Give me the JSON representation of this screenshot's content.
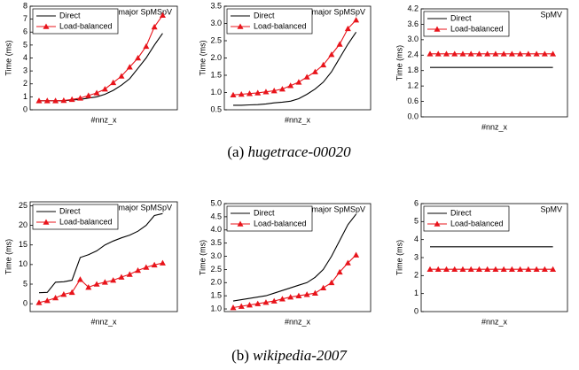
{
  "captions": [
    {
      "label": "(a)",
      "name": "hugetrace-00020"
    },
    {
      "label": "(b)",
      "name": "wikipedia-2007"
    }
  ],
  "chart_data": [
    {
      "type": "line",
      "title": "Column-major SpMSpV",
      "x_label": "#nnz_x",
      "y_label": "Time (ms)",
      "ylim": [
        0,
        8
      ],
      "yticks": [
        0,
        1,
        2,
        3,
        4,
        5,
        6,
        7,
        8
      ],
      "legend": "upper left",
      "series": [
        {
          "name": "Direct",
          "color": "#000000",
          "values": [
            0.7,
            0.7,
            0.7,
            0.7,
            0.75,
            0.8,
            0.9,
            1.0,
            1.2,
            1.5,
            1.9,
            2.4,
            3.2,
            4.0,
            5.0,
            5.9
          ]
        },
        {
          "name": "Load-balanced",
          "color": "#e8141b",
          "marker": "triangle",
          "values": [
            0.7,
            0.7,
            0.7,
            0.72,
            0.8,
            0.9,
            1.1,
            1.3,
            1.6,
            2.1,
            2.6,
            3.3,
            4.0,
            4.9,
            6.4,
            7.3
          ]
        }
      ]
    },
    {
      "type": "line",
      "title": "Row-major SpMSpV",
      "x_label": "#nnz_x",
      "y_label": "Time (ms)",
      "ylim": [
        0.5,
        3.5
      ],
      "yticks": [
        0.5,
        {
          "value": 1,
          "label": "1.0"
        },
        1.5,
        {
          "value": 2,
          "label": "2.0"
        },
        2.5,
        {
          "value": 3,
          "label": "3.0"
        },
        3.5
      ],
      "legend": "upper left",
      "series": [
        {
          "name": "Direct",
          "color": "#000000",
          "values": [
            0.63,
            0.63,
            0.64,
            0.65,
            0.67,
            0.7,
            0.72,
            0.75,
            0.82,
            0.95,
            1.1,
            1.3,
            1.6,
            2.0,
            2.4,
            2.75
          ]
        },
        {
          "name": "Load-balanced",
          "color": "#e8141b",
          "marker": "triangle",
          "values": [
            0.93,
            0.95,
            0.97,
            0.99,
            1.02,
            1.05,
            1.1,
            1.2,
            1.3,
            1.45,
            1.6,
            1.8,
            2.1,
            2.4,
            2.85,
            3.1
          ]
        }
      ]
    },
    {
      "type": "line",
      "title": "SpMV",
      "x_label": "#nnz_x",
      "y_label": "Time (ms)",
      "ylim": [
        0,
        4.2
      ],
      "yticks": [
        {
          "value": 0,
          "label": "0.0"
        },
        0.6,
        1.2,
        1.8,
        2.4,
        {
          "value": 3,
          "label": "3.0"
        },
        3.6,
        4.2
      ],
      "legend": "upper left",
      "series": [
        {
          "name": "Direct",
          "color": "#000000",
          "values": [
            1.92,
            1.92,
            1.92,
            1.92,
            1.92,
            1.92,
            1.92,
            1.92,
            1.92,
            1.92,
            1.92,
            1.92,
            1.92,
            1.92,
            1.92,
            1.92
          ]
        },
        {
          "name": "Load-balanced",
          "color": "#e8141b",
          "marker": "triangle",
          "values": [
            2.45,
            2.45,
            2.45,
            2.45,
            2.45,
            2.45,
            2.45,
            2.45,
            2.45,
            2.45,
            2.45,
            2.45,
            2.45,
            2.45,
            2.45,
            2.45
          ]
        }
      ]
    },
    {
      "type": "line",
      "title": "Column-major SpMSpV",
      "x_label": "#nnz_x",
      "y_label": "Time (ms)",
      "ylim": [
        -2,
        26
      ],
      "yticks": [
        0,
        5,
        10,
        15,
        20,
        25
      ],
      "legend": "upper left",
      "series": [
        {
          "name": "Direct",
          "color": "#000000",
          "values": [
            2.8,
            2.9,
            5.5,
            5.6,
            6.0,
            11.8,
            12.5,
            13.5,
            15.0,
            16.0,
            16.8,
            17.5,
            18.5,
            20.0,
            22.5,
            23.0
          ]
        },
        {
          "name": "Load-balanced",
          "color": "#e8141b",
          "marker": "triangle",
          "values": [
            0.3,
            0.8,
            1.5,
            2.4,
            2.9,
            6.2,
            4.2,
            5.0,
            5.5,
            6.0,
            6.8,
            7.5,
            8.5,
            9.3,
            9.9,
            10.4
          ]
        }
      ]
    },
    {
      "type": "line",
      "title": "Row-major SpMSpV",
      "x_label": "#nnz_x",
      "y_label": "Time (ms)",
      "ylim": [
        0.9,
        5.0
      ],
      "yticks": [
        {
          "value": 1,
          "label": "1.0"
        },
        1.5,
        {
          "value": 2,
          "label": "2.0"
        },
        2.5,
        {
          "value": 3,
          "label": "3.0"
        },
        3.5,
        {
          "value": 4,
          "label": "4.0"
        },
        4.5,
        {
          "value": 5,
          "label": "5.0"
        }
      ],
      "legend": "upper left",
      "series": [
        {
          "name": "Direct",
          "color": "#000000",
          "values": [
            1.3,
            1.35,
            1.4,
            1.45,
            1.5,
            1.6,
            1.7,
            1.8,
            1.9,
            2.0,
            2.2,
            2.5,
            3.0,
            3.6,
            4.2,
            4.6
          ]
        },
        {
          "name": "Load-balanced",
          "color": "#e8141b",
          "marker": "triangle",
          "values": [
            1.05,
            1.1,
            1.15,
            1.2,
            1.25,
            1.3,
            1.38,
            1.45,
            1.5,
            1.55,
            1.6,
            1.8,
            2.0,
            2.4,
            2.75,
            3.05
          ]
        }
      ]
    },
    {
      "type": "line",
      "title": "SpMV",
      "x_label": "#nnz_x",
      "y_label": "Time (ms)",
      "ylim": [
        0,
        6
      ],
      "yticks": [
        0,
        1,
        2,
        3,
        4,
        5,
        6
      ],
      "legend": "upper left",
      "series": [
        {
          "name": "Direct",
          "color": "#000000",
          "values": [
            3.6,
            3.6,
            3.6,
            3.6,
            3.6,
            3.6,
            3.6,
            3.6,
            3.6,
            3.6,
            3.6,
            3.6,
            3.6,
            3.6,
            3.6,
            3.6
          ]
        },
        {
          "name": "Load-balanced",
          "color": "#e8141b",
          "marker": "triangle",
          "values": [
            2.35,
            2.35,
            2.35,
            2.35,
            2.35,
            2.35,
            2.35,
            2.35,
            2.35,
            2.35,
            2.35,
            2.35,
            2.35,
            2.35,
            2.35,
            2.35
          ]
        }
      ]
    }
  ]
}
